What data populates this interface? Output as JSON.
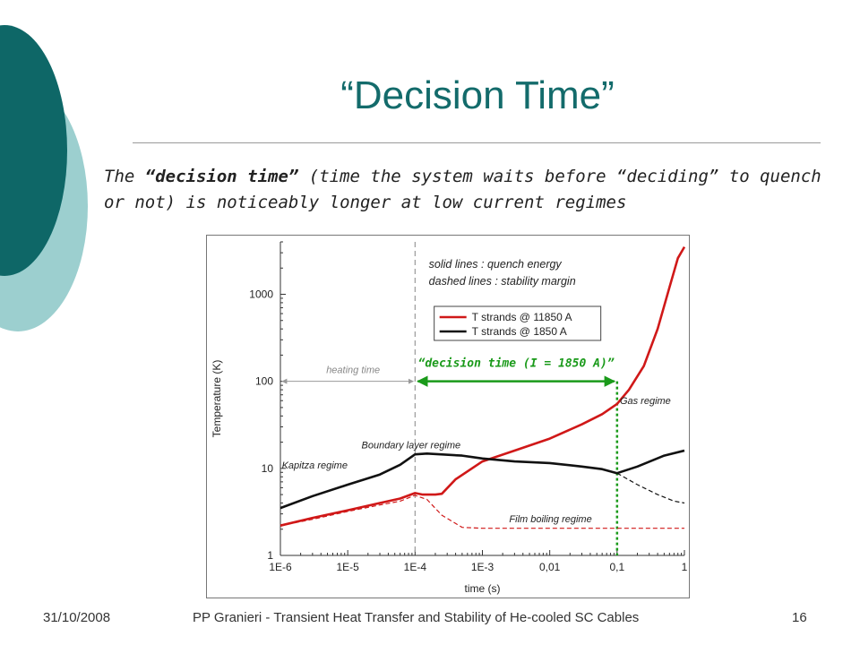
{
  "slide": {
    "title": "“Decision Time”",
    "text_part1": "The ",
    "text_bold": "“decision time”",
    "text_part2": " (time the system waits before “deciding” to quench or not) is noticeably longer at low current regimes",
    "colors": {
      "teal_dark": "#0e6767",
      "teal_light": "#9ccfcf",
      "title": "#136b6b"
    }
  },
  "footer": {
    "date": "31/10/2008",
    "caption": "PP Granieri - Transient Heat Transfer and Stability of He-cooled SC Cables",
    "page": "16"
  },
  "chart_data": {
    "type": "line",
    "xscale": "log",
    "yscale": "log",
    "xlabel": "time (s)",
    "ylabel": "Temperature (K)",
    "xlim": [
      1e-06,
      1
    ],
    "ylim": [
      1,
      4000
    ],
    "xticks": [
      1e-06,
      1e-05,
      0.0001,
      0.001,
      0.01,
      0.1,
      1
    ],
    "xtick_labels": [
      "1E-6",
      "1E-5",
      "1E-4",
      "1E-3",
      "0,01",
      "0,1",
      "1"
    ],
    "yticks": [
      1,
      10,
      100,
      1000
    ],
    "ytick_labels": [
      "1",
      "10",
      "100",
      "1000"
    ],
    "notes": [
      "solid lines  : quench energy",
      "dashed lines : stability margin"
    ],
    "legend": [
      {
        "label": "T strands @ 11850 A",
        "color": "#d01818"
      },
      {
        "label": "T strands @   1850 A",
        "color": "#111111"
      }
    ],
    "series": [
      {
        "key": "red_solid",
        "color": "#d01818",
        "dash": false,
        "x": [
          1e-06,
          3e-06,
          1e-05,
          3e-05,
          6e-05,
          0.0001,
          0.00013,
          0.0002,
          0.00025,
          0.0004,
          0.001,
          0.003,
          0.01,
          0.03,
          0.06,
          0.1,
          0.15,
          0.25,
          0.4,
          0.6,
          0.8,
          1
        ],
        "y": [
          2.2,
          2.7,
          3.3,
          4.0,
          4.5,
          5.2,
          5.0,
          5.0,
          5.1,
          7.5,
          12,
          16,
          22,
          32,
          42,
          55,
          80,
          150,
          400,
          1200,
          2600,
          3500
        ]
      },
      {
        "key": "red_dashed",
        "color": "#d01818",
        "dash": true,
        "x": [
          1e-06,
          3e-06,
          1e-05,
          3e-05,
          6e-05,
          0.0001,
          0.00015,
          0.00025,
          0.0005,
          0.001,
          0.01,
          0.1,
          1
        ],
        "y": [
          2.2,
          2.6,
          3.2,
          3.8,
          4.2,
          4.9,
          4.4,
          2.9,
          2.1,
          2.05,
          2.05,
          2.05,
          2.05
        ]
      },
      {
        "key": "black_solid",
        "color": "#111111",
        "dash": false,
        "x": [
          1e-06,
          3e-06,
          1e-05,
          3e-05,
          6e-05,
          0.0001,
          0.00015,
          0.0005,
          0.001,
          0.003,
          0.01,
          0.03,
          0.06,
          0.1,
          0.2,
          0.5,
          1
        ],
        "y": [
          3.5,
          4.8,
          6.5,
          8.5,
          11,
          14.5,
          14.8,
          14,
          13,
          12,
          11.5,
          10.5,
          9.8,
          8.8,
          10.5,
          14,
          16
        ]
      },
      {
        "key": "black_dashed",
        "color": "#111111",
        "dash": true,
        "x": [
          0.1,
          0.2,
          0.4,
          0.7,
          1
        ],
        "y": [
          8.8,
          6.5,
          5.0,
          4.2,
          4.0
        ]
      }
    ],
    "annotations": {
      "heating_time": {
        "label": "heating time",
        "x_from": 1e-06,
        "x_to": 0.0001,
        "y": 100
      },
      "decision_time": {
        "label": "“decision time (I = 1850 A)”",
        "x_from": 0.0001,
        "x_to": 0.1,
        "y": 100,
        "color": "#1a9a1a"
      },
      "regimes": [
        {
          "label": "Kapitza regime",
          "x": 1.05e-06,
          "y": 10
        },
        {
          "label": "Boundary layer regime",
          "x": 1.6e-05,
          "y": 17
        },
        {
          "label": "Gas regime",
          "x": 0.11,
          "y": 55
        },
        {
          "label": "Film boiling regime",
          "x": 0.0025,
          "y": 2.4
        }
      ]
    }
  }
}
